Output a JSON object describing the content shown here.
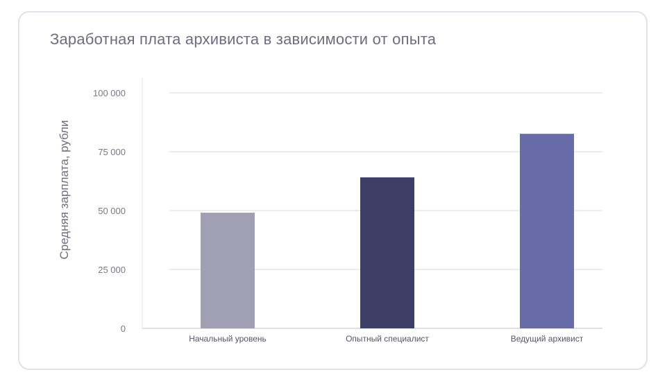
{
  "chart_data": {
    "type": "bar",
    "title": "Заработная плата архивиста в зависимости от опыта",
    "xlabel": "",
    "ylabel": "Средняя зарплата, рубли",
    "ylim": [
      0,
      100000
    ],
    "yticks": [
      0,
      25000,
      50000,
      75000,
      100000
    ],
    "ytick_labels": [
      "0",
      "25 000",
      "50 000",
      "75 000",
      "100 000"
    ],
    "categories": [
      "Начальный уровень",
      "Опытный специалист",
      "Ведущий архивист"
    ],
    "values": [
      49100,
      64100,
      82600
    ],
    "colors": [
      "#a09fb3",
      "#3e3f66",
      "#676ca9"
    ],
    "grid": true,
    "legend": "none"
  }
}
